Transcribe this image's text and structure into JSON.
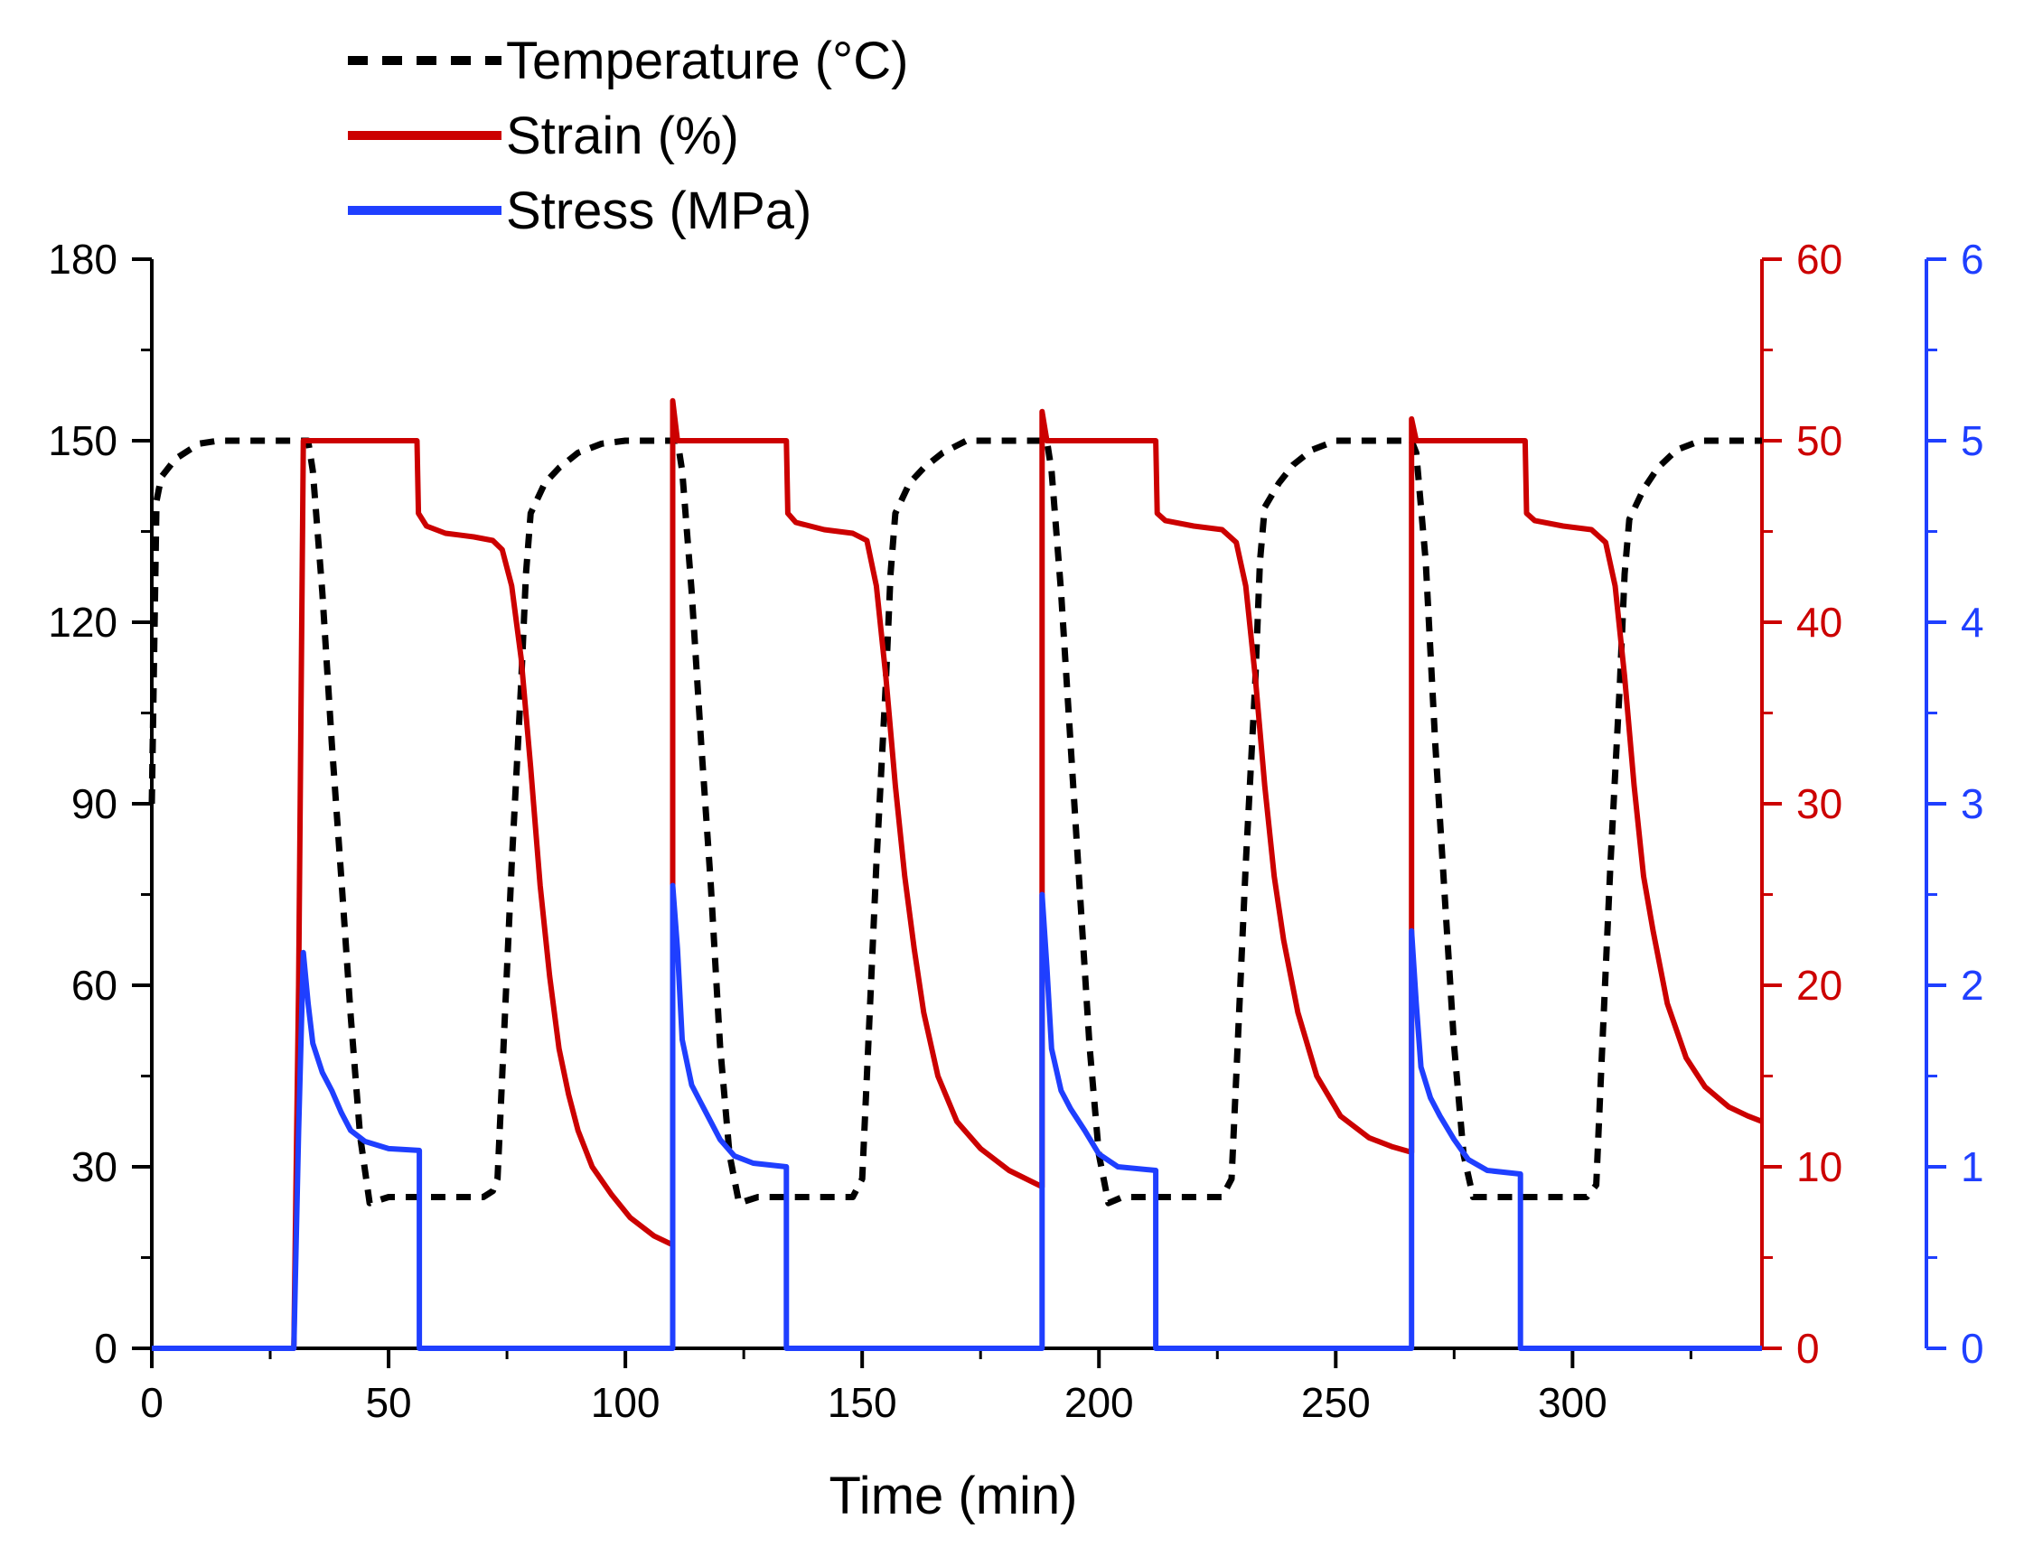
{
  "chart_data": {
    "type": "line",
    "xlabel": "Time (min)",
    "xlim": [
      0,
      340
    ],
    "x_ticks": [
      0,
      50,
      100,
      150,
      200,
      250,
      300
    ],
    "x_minor_step": 25,
    "axes": [
      {
        "id": "temperature",
        "side": "left",
        "color": "#000000",
        "ylim": [
          0,
          180
        ],
        "ticks": [
          0,
          30,
          60,
          90,
          120,
          150,
          180
        ],
        "minor_step": 15
      },
      {
        "id": "strain",
        "side": "right",
        "color": "#cc0000",
        "ylim": [
          0,
          60
        ],
        "ticks": [
          0,
          10,
          20,
          30,
          40,
          50,
          60
        ],
        "minor_step": 5
      },
      {
        "id": "stress",
        "side": "right-outer",
        "color": "#1f3fff",
        "ylim": [
          0,
          6
        ],
        "ticks": [
          0,
          1,
          2,
          3,
          4,
          5,
          6
        ],
        "minor_step": 0.5
      }
    ],
    "legend_position": "top-left",
    "series": [
      {
        "name": "Temperature (°C)",
        "axis": "temperature",
        "color": "#000000",
        "dash": "dashed",
        "points": [
          [
            0,
            90
          ],
          [
            0.5,
            115
          ],
          [
            1,
            140
          ],
          [
            2,
            144
          ],
          [
            5,
            147
          ],
          [
            10,
            149.5
          ],
          [
            14,
            150
          ],
          [
            33,
            150
          ],
          [
            34,
            145
          ],
          [
            36,
            125
          ],
          [
            38,
            100
          ],
          [
            40,
            78
          ],
          [
            42,
            55
          ],
          [
            44,
            35
          ],
          [
            46,
            24
          ],
          [
            50,
            25
          ],
          [
            70,
            25
          ],
          [
            72,
            26
          ],
          [
            73,
            28
          ],
          [
            74,
            45
          ],
          [
            76,
            80
          ],
          [
            78,
            110
          ],
          [
            79,
            128
          ],
          [
            80,
            138
          ],
          [
            83,
            143
          ],
          [
            86,
            145.5
          ],
          [
            90,
            148
          ],
          [
            95,
            149.5
          ],
          [
            100,
            150
          ],
          [
            111,
            150
          ],
          [
            112,
            145
          ],
          [
            114,
            125
          ],
          [
            116,
            100
          ],
          [
            118,
            77
          ],
          [
            120,
            50
          ],
          [
            122,
            32
          ],
          [
            124,
            24
          ],
          [
            128,
            25
          ],
          [
            148,
            25
          ],
          [
            150,
            28
          ],
          [
            151,
            45
          ],
          [
            153,
            80
          ],
          [
            155,
            110
          ],
          [
            156,
            128
          ],
          [
            157,
            138
          ],
          [
            160,
            143
          ],
          [
            163,
            145.5
          ],
          [
            167,
            148
          ],
          [
            172,
            150
          ],
          [
            189,
            150
          ],
          [
            190,
            145
          ],
          [
            192,
            125
          ],
          [
            194,
            100
          ],
          [
            196,
            75
          ],
          [
            198,
            50
          ],
          [
            200,
            32
          ],
          [
            202,
            24
          ],
          [
            205,
            25
          ],
          [
            226,
            25
          ],
          [
            228,
            28
          ],
          [
            229,
            45
          ],
          [
            231,
            80
          ],
          [
            233,
            110
          ],
          [
            234,
            130
          ],
          [
            235,
            139
          ],
          [
            238,
            143
          ],
          [
            241,
            146
          ],
          [
            245,
            148.5
          ],
          [
            250,
            150
          ],
          [
            266,
            150
          ],
          [
            267,
            148
          ],
          [
            269,
            130
          ],
          [
            271,
            100
          ],
          [
            273,
            75
          ],
          [
            275,
            50
          ],
          [
            277,
            32
          ],
          [
            279,
            25
          ],
          [
            283,
            25
          ],
          [
            303,
            25
          ],
          [
            305,
            27
          ],
          [
            306,
            45
          ],
          [
            308,
            80
          ],
          [
            310,
            110
          ],
          [
            311,
            128
          ],
          [
            312,
            137
          ],
          [
            315,
            142
          ],
          [
            318,
            145.5
          ],
          [
            322,
            148.5
          ],
          [
            327,
            150
          ],
          [
            340,
            150
          ]
        ]
      },
      {
        "name": "Strain (%)",
        "axis": "strain",
        "color": "#cc0000",
        "dash": "solid",
        "points": [
          [
            0,
            0
          ],
          [
            30,
            0
          ],
          [
            31,
            20
          ],
          [
            32,
            50
          ],
          [
            56,
            50
          ],
          [
            56.3,
            46
          ],
          [
            58,
            45.3
          ],
          [
            62,
            44.9
          ],
          [
            68,
            44.7
          ],
          [
            72,
            44.5
          ],
          [
            74,
            44
          ],
          [
            76,
            42
          ],
          [
            78,
            38
          ],
          [
            80,
            32
          ],
          [
            82,
            25.5
          ],
          [
            84,
            20.5
          ],
          [
            86,
            16.5
          ],
          [
            88,
            14
          ],
          [
            90,
            12
          ],
          [
            93,
            10
          ],
          [
            97,
            8.5
          ],
          [
            101,
            7.2
          ],
          [
            106,
            6.2
          ],
          [
            110,
            5.7
          ],
          [
            110,
            52.2
          ],
          [
            111,
            50
          ],
          [
            134,
            50
          ],
          [
            134.3,
            46
          ],
          [
            136,
            45.5
          ],
          [
            142,
            45.1
          ],
          [
            148,
            44.9
          ],
          [
            151,
            44.5
          ],
          [
            153,
            42
          ],
          [
            155,
            37
          ],
          [
            157,
            31
          ],
          [
            159,
            26
          ],
          [
            161,
            22
          ],
          [
            163,
            18.5
          ],
          [
            166,
            15
          ],
          [
            170,
            12.5
          ],
          [
            175,
            11
          ],
          [
            181,
            9.8
          ],
          [
            188,
            8.9
          ],
          [
            188,
            51.6
          ],
          [
            189,
            50
          ],
          [
            212,
            50
          ],
          [
            212.3,
            46
          ],
          [
            214,
            45.6
          ],
          [
            220,
            45.3
          ],
          [
            226,
            45.1
          ],
          [
            229,
            44.4
          ],
          [
            231,
            42
          ],
          [
            233,
            37
          ],
          [
            235,
            31
          ],
          [
            237,
            26
          ],
          [
            239,
            22.5
          ],
          [
            242,
            18.5
          ],
          [
            246,
            15
          ],
          [
            251,
            12.8
          ],
          [
            257,
            11.6
          ],
          [
            262,
            11.1
          ],
          [
            266,
            10.8
          ],
          [
            266,
            51.2
          ],
          [
            267,
            50
          ],
          [
            290,
            50
          ],
          [
            290.3,
            46
          ],
          [
            292,
            45.6
          ],
          [
            298,
            45.3
          ],
          [
            304,
            45.1
          ],
          [
            307,
            44.4
          ],
          [
            309,
            42
          ],
          [
            311,
            37
          ],
          [
            313,
            31
          ],
          [
            315,
            26
          ],
          [
            317,
            23
          ],
          [
            320,
            19
          ],
          [
            324,
            16
          ],
          [
            328,
            14.4
          ],
          [
            333,
            13.3
          ],
          [
            337,
            12.8
          ],
          [
            340,
            12.5
          ]
        ]
      },
      {
        "name": "Stress (MPa)",
        "axis": "stress",
        "color": "#1f3fff",
        "dash": "solid",
        "points": [
          [
            0,
            0
          ],
          [
            30,
            0
          ],
          [
            31,
            1.2
          ],
          [
            32,
            2.18
          ],
          [
            33,
            1.9
          ],
          [
            34,
            1.68
          ],
          [
            36,
            1.52
          ],
          [
            38,
            1.42
          ],
          [
            40,
            1.3
          ],
          [
            42,
            1.2
          ],
          [
            45,
            1.14
          ],
          [
            50,
            1.1
          ],
          [
            56.5,
            1.09
          ],
          [
            56.5,
            0
          ],
          [
            110,
            0
          ],
          [
            110,
            2.55
          ],
          [
            111,
            2.2
          ],
          [
            112,
            1.7
          ],
          [
            114,
            1.45
          ],
          [
            116,
            1.35
          ],
          [
            118,
            1.25
          ],
          [
            120,
            1.15
          ],
          [
            123,
            1.06
          ],
          [
            127,
            1.02
          ],
          [
            134,
            1
          ],
          [
            134,
            0
          ],
          [
            188,
            0
          ],
          [
            188,
            2.5
          ],
          [
            189,
            2.1
          ],
          [
            190,
            1.65
          ],
          [
            192,
            1.42
          ],
          [
            194,
            1.32
          ],
          [
            197,
            1.2
          ],
          [
            200,
            1.07
          ],
          [
            204,
            1
          ],
          [
            212,
            0.98
          ],
          [
            212,
            0
          ],
          [
            266,
            0
          ],
          [
            266,
            2.3
          ],
          [
            267,
            1.9
          ],
          [
            268,
            1.55
          ],
          [
            270,
            1.38
          ],
          [
            272,
            1.28
          ],
          [
            275,
            1.15
          ],
          [
            278,
            1.04
          ],
          [
            282,
            0.98
          ],
          [
            289,
            0.96
          ],
          [
            289,
            0
          ],
          [
            340,
            0
          ]
        ]
      }
    ]
  }
}
